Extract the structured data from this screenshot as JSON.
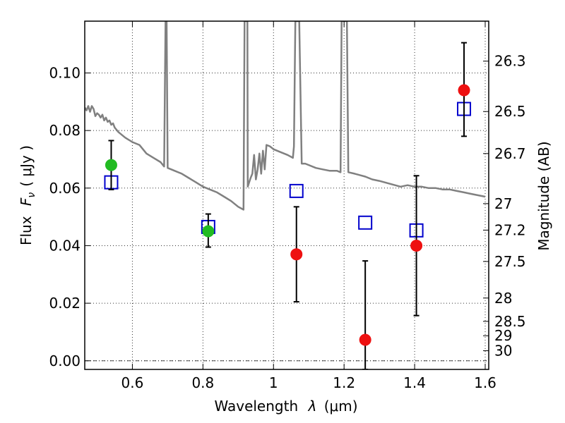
{
  "chart_data": {
    "type": "scatter",
    "title": "",
    "xlabel_text": "Wavelength",
    "xlabel_symbol": "λ",
    "xlabel_unit": "(μm)",
    "ylabel_text": "Flux",
    "ylabel_symbol": "F",
    "ylabel_subscript": "ν",
    "ylabel_unit": "( μJy )",
    "y2label": "Magnitude (AB)",
    "xlim": [
      0.465,
      1.61
    ],
    "ylim": [
      -0.003,
      0.118
    ],
    "grid": true,
    "x_ticks": [
      0.6,
      0.8,
      1.0,
      1.2,
      1.4,
      1.6
    ],
    "x_tick_labels": [
      "0.6",
      "0.8",
      "1",
      "1.2",
      "1.4",
      "1.6"
    ],
    "y_ticks": [
      0.0,
      0.02,
      0.04,
      0.06,
      0.08,
      0.1
    ],
    "y_tick_labels": [
      "0.00",
      "0.02",
      "0.04",
      "0.06",
      "0.08",
      "0.10"
    ],
    "y2_ticks": [
      {
        "label": "26.3",
        "flux": 0.1041
      },
      {
        "label": "26.5",
        "flux": 0.0866
      },
      {
        "label": "26.7",
        "flux": 0.072
      },
      {
        "label": "27",
        "flux": 0.0546
      },
      {
        "label": "27.2",
        "flux": 0.0454
      },
      {
        "label": "27.5",
        "flux": 0.0345
      },
      {
        "label": "28",
        "flux": 0.0218
      },
      {
        "label": "28.5",
        "flux": 0.0137
      },
      {
        "label": "29",
        "flux": 0.0087
      },
      {
        "label": "30",
        "flux": 0.0035
      }
    ],
    "series": [
      {
        "name": "model SED",
        "kind": "line",
        "color": "#808080",
        "points": [
          [
            0.465,
            0.088
          ],
          [
            0.47,
            0.087
          ],
          [
            0.475,
            0.0885
          ],
          [
            0.48,
            0.0865
          ],
          [
            0.485,
            0.0885
          ],
          [
            0.49,
            0.0875
          ],
          [
            0.495,
            0.085
          ],
          [
            0.5,
            0.086
          ],
          [
            0.505,
            0.0855
          ],
          [
            0.51,
            0.0845
          ],
          [
            0.515,
            0.0855
          ],
          [
            0.52,
            0.0835
          ],
          [
            0.525,
            0.0845
          ],
          [
            0.53,
            0.083
          ],
          [
            0.535,
            0.0835
          ],
          [
            0.54,
            0.082
          ],
          [
            0.545,
            0.0825
          ],
          [
            0.55,
            0.081
          ],
          [
            0.56,
            0.0795
          ],
          [
            0.58,
            0.0775
          ],
          [
            0.6,
            0.076
          ],
          [
            0.62,
            0.075
          ],
          [
            0.64,
            0.072
          ],
          [
            0.66,
            0.0705
          ],
          [
            0.68,
            0.069
          ],
          [
            0.69,
            0.0675
          ],
          [
            0.694,
            0.118
          ],
          [
            0.697,
            0.118
          ],
          [
            0.7,
            0.067
          ],
          [
            0.72,
            0.066
          ],
          [
            0.74,
            0.065
          ],
          [
            0.76,
            0.0635
          ],
          [
            0.78,
            0.062
          ],
          [
            0.8,
            0.0605
          ],
          [
            0.82,
            0.0595
          ],
          [
            0.84,
            0.0585
          ],
          [
            0.86,
            0.057
          ],
          [
            0.88,
            0.0555
          ],
          [
            0.9,
            0.0535
          ],
          [
            0.915,
            0.0525
          ],
          [
            0.918,
            0.118
          ],
          [
            0.926,
            0.118
          ],
          [
            0.927,
            0.0605
          ],
          [
            0.935,
            0.0635
          ],
          [
            0.94,
            0.065
          ],
          [
            0.945,
            0.0715
          ],
          [
            0.95,
            0.063
          ],
          [
            0.955,
            0.0665
          ],
          [
            0.96,
            0.072
          ],
          [
            0.965,
            0.065
          ],
          [
            0.97,
            0.073
          ],
          [
            0.975,
            0.0665
          ],
          [
            0.98,
            0.075
          ],
          [
            0.99,
            0.0745
          ],
          [
            1.0,
            0.0735
          ],
          [
            1.02,
            0.0725
          ],
          [
            1.04,
            0.0715
          ],
          [
            1.055,
            0.0705
          ],
          [
            1.058,
            0.0745
          ],
          [
            1.062,
            0.118
          ],
          [
            1.073,
            0.118
          ],
          [
            1.08,
            0.0685
          ],
          [
            1.09,
            0.0685
          ],
          [
            1.1,
            0.068
          ],
          [
            1.12,
            0.067
          ],
          [
            1.14,
            0.0665
          ],
          [
            1.16,
            0.066
          ],
          [
            1.18,
            0.066
          ],
          [
            1.19,
            0.0655
          ],
          [
            1.193,
            0.118
          ],
          [
            1.208,
            0.118
          ],
          [
            1.212,
            0.0655
          ],
          [
            1.23,
            0.065
          ],
          [
            1.26,
            0.064
          ],
          [
            1.28,
            0.063
          ],
          [
            1.3,
            0.0625
          ],
          [
            1.33,
            0.0615
          ],
          [
            1.36,
            0.0605
          ],
          [
            1.38,
            0.061
          ],
          [
            1.4,
            0.0605
          ],
          [
            1.42,
            0.0605
          ],
          [
            1.44,
            0.06
          ],
          [
            1.46,
            0.06
          ],
          [
            1.48,
            0.0595
          ],
          [
            1.5,
            0.0595
          ],
          [
            1.52,
            0.059
          ],
          [
            1.54,
            0.0585
          ],
          [
            1.56,
            0.058
          ],
          [
            1.58,
            0.0575
          ],
          [
            1.6,
            0.057
          ]
        ]
      },
      {
        "name": "model photometry",
        "kind": "open-square",
        "color": "#0000cc",
        "points": [
          [
            0.54,
            0.062
          ],
          [
            0.815,
            0.0465
          ],
          [
            1.065,
            0.059
          ],
          [
            1.26,
            0.048
          ],
          [
            1.405,
            0.0453
          ],
          [
            1.54,
            0.0875
          ]
        ]
      },
      {
        "name": "observed (green)",
        "kind": "filled-circle",
        "color": "#22bb22",
        "points": [
          {
            "x": 0.54,
            "y": 0.068,
            "err_low": 0.0595,
            "err_high": 0.0765
          },
          {
            "x": 0.815,
            "y": 0.045,
            "err_low": 0.0395,
            "err_high": 0.051
          }
        ]
      },
      {
        "name": "observed (red)",
        "kind": "filled-circle",
        "color": "#ee1111",
        "points": [
          {
            "x": 1.065,
            "y": 0.037,
            "err_low": 0.0205,
            "err_high": 0.0535
          },
          {
            "x": 1.26,
            "y": 0.0073,
            "err_low": -0.003,
            "err_high": 0.0347
          },
          {
            "x": 1.405,
            "y": 0.04,
            "err_low": 0.0157,
            "err_high": 0.0643
          },
          {
            "x": 1.54,
            "y": 0.094,
            "err_low": 0.078,
            "err_high": 0.1105
          }
        ]
      }
    ]
  }
}
